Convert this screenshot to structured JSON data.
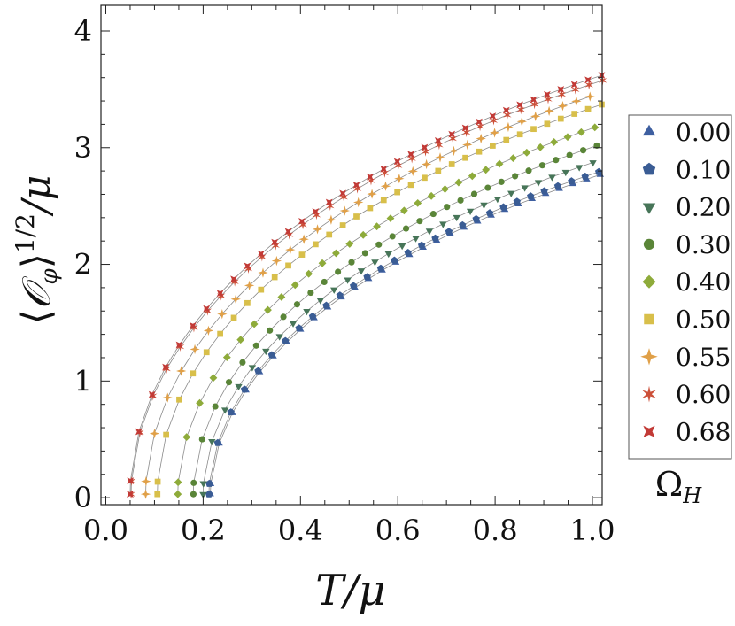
{
  "chart_data": {
    "type": "scatter",
    "xlabel": "T/μ",
    "ylabel": "⟨𝒪φ⟩^(1/2)/μ",
    "ylabel_parts": {
      "open": "⟨",
      "op": "𝒪",
      "sub": "φ",
      "close": "⟩",
      "exp": "1/2",
      "tail": "/μ"
    },
    "xlim": [
      -0.01,
      1.02
    ],
    "ylim": [
      -0.06,
      4.22
    ],
    "xticks": [
      0.0,
      0.2,
      0.4,
      0.6,
      0.8,
      1.0
    ],
    "xtick_labels": [
      "0.0",
      "0.2",
      "0.4",
      "0.6",
      "0.8",
      "1.0"
    ],
    "yticks": [
      0,
      1,
      2,
      3,
      4
    ],
    "ytick_labels": [
      "0",
      "1",
      "2",
      "3",
      "4"
    ],
    "grid": false,
    "legend": {
      "placement": "right",
      "title": "Ω_H",
      "title_main": "Ω",
      "title_sub": "H"
    },
    "series": [
      {
        "name": "0.00",
        "marker": "triangle-up",
        "color": "#3E5FA0",
        "Tc": 0.215,
        "c": 3.42,
        "points": []
      },
      {
        "name": "0.10",
        "marker": "pentagon",
        "color": "#3A5C94",
        "Tc": 0.212,
        "c": 3.45,
        "points": []
      },
      {
        "name": "0.20",
        "marker": "triangle-down",
        "color": "#477558",
        "Tc": 0.2,
        "c": 3.55,
        "points": []
      },
      {
        "name": "0.30",
        "marker": "circle",
        "color": "#5A8538",
        "Tc": 0.18,
        "c": 3.68,
        "points": []
      },
      {
        "name": "0.40",
        "marker": "diamond",
        "color": "#8EAB3A",
        "Tc": 0.148,
        "c": 3.82,
        "points": []
      },
      {
        "name": "0.50",
        "marker": "square",
        "color": "#D8BF4A",
        "Tc": 0.106,
        "c": 3.96,
        "points": []
      },
      {
        "name": "0.55",
        "marker": "star4",
        "color": "#E0A048",
        "Tc": 0.082,
        "c": 4.04,
        "points": []
      },
      {
        "name": "0.60",
        "marker": "asterisk",
        "color": "#CC4F38",
        "Tc": 0.052,
        "c": 4.11,
        "points": []
      },
      {
        "name": "0.68",
        "marker": "star6",
        "color": "#C23A36",
        "Tc": 0.05,
        "c": 4.16,
        "points": []
      }
    ],
    "line_color": "#8a8a8a"
  }
}
